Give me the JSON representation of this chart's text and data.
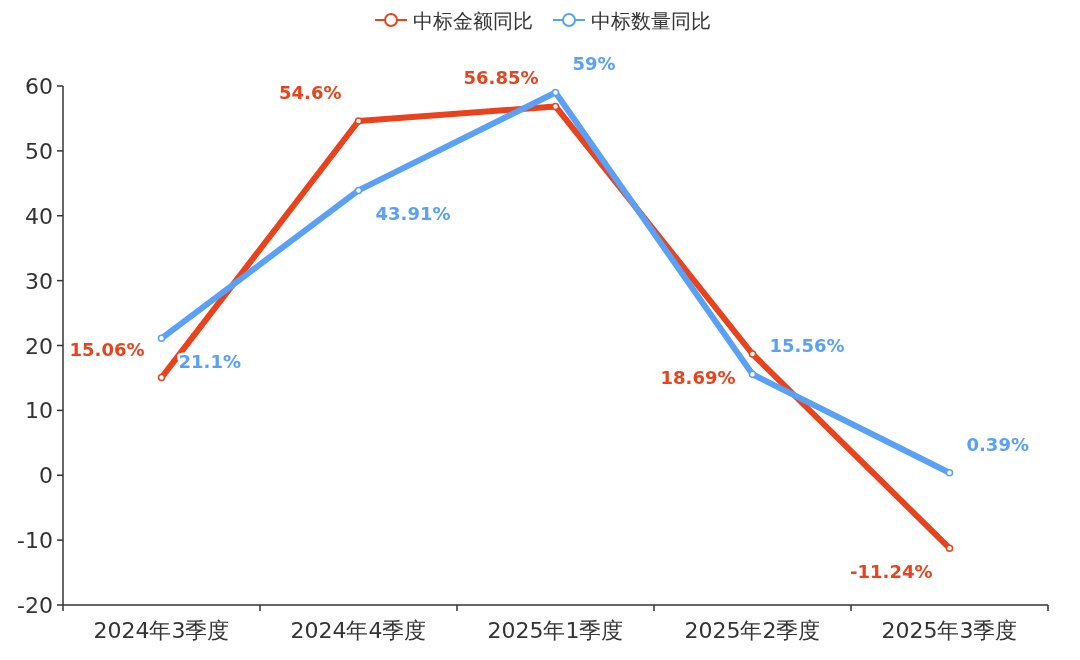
{
  "chart_data": {
    "type": "line",
    "categories": [
      "2024年3季度",
      "2024年4季度",
      "2025年1季度",
      "2025年2季度",
      "2025年3季度"
    ],
    "series": [
      {
        "name": "中标金额同比",
        "color": "#e8431c",
        "values": [
          15.06,
          54.6,
          56.85,
          18.69,
          -11.24
        ],
        "value_labels": [
          "15.06%",
          "54.6%",
          "56.85%",
          "18.69%",
          "-11.24%"
        ]
      },
      {
        "name": "中标数量同比",
        "color": "#5aa0f5",
        "values": [
          21.1,
          43.91,
          59,
          15.56,
          0.39
        ],
        "value_labels": [
          "21.1%",
          "43.91%",
          "59%",
          "15.56%",
          "0.39%"
        ]
      }
    ],
    "ylim": [
      -20,
      60
    ],
    "yticks": [
      -20,
      -10,
      0,
      10,
      20,
      30,
      40,
      50,
      60
    ],
    "legend": "top",
    "marker": "circle",
    "grid": false
  }
}
